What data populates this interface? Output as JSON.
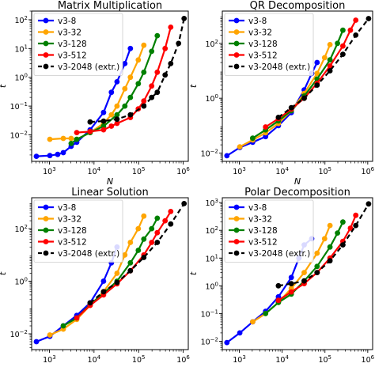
{
  "colors": {
    "v3-8": "#0000ff",
    "v3-32": "#ffa500",
    "v3-128": "#008000",
    "v3-512": "#ff0000",
    "v3-2048 (extr.)": "#000000"
  },
  "chart_data": [
    {
      "type": "line",
      "title": "Matrix Multiplication",
      "xlabel": "N",
      "ylabel": "t",
      "xscale": "log",
      "yscale": "log",
      "xlim": [
        400,
        1300000
      ],
      "ylim": [
        0.0012,
        200
      ],
      "xticks": [
        "10^3",
        "10^4",
        "10^5",
        "10^6"
      ],
      "yticks": [
        "10^-2",
        "10^-1",
        "10^0",
        "10^1",
        "10^2"
      ],
      "legend": "upper left",
      "series": [
        {
          "name": "v3-8",
          "x": [
            512,
            1024,
            1536,
            2048,
            3072,
            4096,
            8192,
            16384,
            24576,
            32768,
            49152,
            65536
          ],
          "y": [
            0.0018,
            0.0019,
            0.0021,
            0.0024,
            0.004,
            0.0055,
            0.015,
            0.06,
            0.3,
            0.7,
            3.0,
            10.0
          ]
        },
        {
          "name": "v3-32",
          "x": [
            1024,
            2048,
            3072,
            4096,
            8192,
            16384,
            24576,
            32768,
            49152,
            65536,
            98304,
            131072
          ],
          "y": [
            0.007,
            0.0075,
            0.0075,
            0.007,
            0.012,
            0.025,
            0.05,
            0.1,
            0.4,
            1.0,
            4.0,
            13.0
          ]
        },
        {
          "name": "v3-128",
          "x": [
            3072,
            4096,
            8192,
            16384,
            32768,
            49152,
            65536,
            98304,
            131072,
            196608,
            262144
          ],
          "y": [
            0.005,
            0.007,
            0.012,
            0.02,
            0.05,
            0.1,
            0.2,
            0.6,
            1.5,
            8.0,
            28.0
          ]
        },
        {
          "name": "v3-512",
          "x": [
            4096,
            8192,
            16384,
            24576,
            32768,
            65536,
            98304,
            131072,
            196608,
            262144,
            393216,
            524288
          ],
          "y": [
            0.012,
            0.013,
            0.015,
            0.02,
            0.025,
            0.04,
            0.08,
            0.15,
            0.5,
            1.5,
            10.0,
            55.0
          ]
        },
        {
          "name": "v3-2048 (extr.)",
          "x": [
            8192,
            16384,
            32768,
            65536,
            131072,
            196608,
            262144,
            393216,
            524288,
            786432,
            1048576
          ],
          "y": [
            0.028,
            0.03,
            0.035,
            0.05,
            0.1,
            0.2,
            0.3,
            1.2,
            3.0,
            15.0,
            110.0
          ]
        }
      ]
    },
    {
      "type": "line",
      "title": "QR Decomposition",
      "xlabel": "N",
      "ylabel": "t",
      "xscale": "log",
      "yscale": "log",
      "xlim": [
        400,
        1300000
      ],
      "ylim": [
        0.005,
        1500
      ],
      "xticks": [
        "10^3",
        "10^4",
        "10^5",
        "10^6"
      ],
      "yticks": [
        "10^-2",
        "10^0",
        "10^2"
      ],
      "legend": "upper left",
      "series": [
        {
          "name": "v3-8",
          "x": [
            512,
            1024,
            2048,
            4096,
            8192,
            16384,
            32768,
            49152,
            65536
          ],
          "y": [
            0.008,
            0.016,
            0.025,
            0.04,
            0.1,
            0.3,
            2.0,
            8.0,
            20.0
          ]
        },
        {
          "name": "v3-32",
          "x": [
            1024,
            2048,
            4096,
            8192,
            16384,
            32768,
            65536,
            98304,
            131072
          ],
          "y": [
            0.017,
            0.03,
            0.055,
            0.12,
            0.35,
            1.5,
            8.0,
            30.0,
            90.0
          ]
        },
        {
          "name": "v3-128",
          "x": [
            2048,
            4096,
            8192,
            16384,
            32768,
            65536,
            131072,
            196608,
            262144
          ],
          "y": [
            0.035,
            0.07,
            0.15,
            0.35,
            1.2,
            5.0,
            25.0,
            100.0,
            300.0
          ]
        },
        {
          "name": "v3-512",
          "x": [
            4096,
            8192,
            16384,
            32768,
            65536,
            131072,
            262144,
            393216,
            524288
          ],
          "y": [
            0.09,
            0.18,
            0.4,
            1.0,
            3.5,
            15.0,
            80.0,
            300.0,
            700.0
          ]
        },
        {
          "name": "v3-2048 (extr.)",
          "x": [
            8192,
            16384,
            32768,
            65536,
            131072,
            262144,
            524288,
            1048576
          ],
          "y": [
            0.2,
            0.45,
            1.0,
            3.0,
            10.0,
            40.0,
            200.0,
            800.0
          ]
        }
      ]
    },
    {
      "type": "line",
      "title": "Linear Solution",
      "xlabel": "N",
      "ylabel": "t",
      "xscale": "log",
      "yscale": "log",
      "xlim": [
        400,
        1300000
      ],
      "ylim": [
        0.0025,
        1500
      ],
      "xticks": [
        "10^3",
        "10^4",
        "10^5",
        "10^6"
      ],
      "yticks": [
        "10^-2",
        "10^0",
        "10^2"
      ],
      "legend": "upper left",
      "series": [
        {
          "name": "v3-8",
          "x": [
            512,
            1024,
            2048,
            4096,
            8192,
            16384,
            24576,
            32768
          ],
          "y": [
            0.005,
            0.008,
            0.02,
            0.05,
            0.15,
            1.0,
            5.0,
            20.0
          ]
        },
        {
          "name": "v3-32",
          "x": [
            1024,
            2048,
            4096,
            8192,
            16384,
            32768,
            49152,
            65536,
            98304,
            131072
          ],
          "y": [
            0.009,
            0.015,
            0.035,
            0.12,
            0.4,
            2.0,
            10.0,
            30.0,
            100.0,
            300.0
          ]
        },
        {
          "name": "v3-128",
          "x": [
            2048,
            4096,
            8192,
            16384,
            32768,
            65536,
            98304,
            131072,
            196608,
            262144
          ],
          "y": [
            0.02,
            0.04,
            0.13,
            0.35,
            1.0,
            5.0,
            15.0,
            40.0,
            100.0,
            250.0
          ]
        },
        {
          "name": "v3-512",
          "x": [
            4096,
            8192,
            16384,
            32768,
            65536,
            131072,
            196608,
            262144,
            393216,
            524288
          ],
          "y": [
            0.04,
            0.12,
            0.3,
            0.8,
            2.5,
            10.0,
            30.0,
            70.0,
            200.0,
            450.0
          ]
        },
        {
          "name": "v3-2048 (extr.)",
          "x": [
            8192,
            16384,
            32768,
            65536,
            131072,
            262144,
            524288,
            1048576
          ],
          "y": [
            0.15,
            0.4,
            0.9,
            2.5,
            8.0,
            30.0,
            150.0,
            900.0
          ]
        }
      ]
    },
    {
      "type": "line",
      "title": "Polar Decomposition",
      "xlabel": "N",
      "ylabel": "t",
      "xscale": "log",
      "yscale": "log",
      "xlim": [
        400,
        1300000
      ],
      "ylim": [
        0.005,
        1500
      ],
      "xticks": [
        "10^3",
        "10^4",
        "10^5",
        "10^6"
      ],
      "yticks": [
        "10^-2",
        "10^-1",
        "10^0",
        "10^1",
        "10^2",
        "10^3"
      ],
      "legend": "upper left",
      "series": [
        {
          "name": "v3-8",
          "x": [
            512,
            1024,
            2048,
            4096,
            8192,
            16384,
            24576,
            32768,
            49152
          ],
          "y": [
            0.009,
            0.02,
            0.05,
            0.12,
            0.4,
            2.0,
            10.0,
            30.0,
            50.0
          ]
        },
        {
          "name": "v3-32",
          "x": [
            2048,
            4096,
            8192,
            16384,
            32768,
            65536,
            98304,
            131072
          ],
          "y": [
            0.05,
            0.1,
            0.25,
            0.8,
            3.0,
            15.0,
            50.0,
            150.0
          ]
        },
        {
          "name": "v3-128",
          "x": [
            4096,
            8192,
            16384,
            32768,
            65536,
            131072,
            196608,
            262144
          ],
          "y": [
            0.1,
            0.25,
            0.5,
            1.5,
            5.0,
            25.0,
            80.0,
            200.0
          ]
        },
        {
          "name": "v3-512",
          "x": [
            8192,
            16384,
            32768,
            65536,
            131072,
            262144,
            393216,
            524288
          ],
          "y": [
            0.3,
            0.6,
            1.2,
            3.0,
            10.0,
            40.0,
            120.0,
            350.0
          ]
        },
        {
          "name": "v3-2048 (extr.)",
          "x": [
            8192,
            16384,
            32768,
            65536,
            131072,
            262144,
            524288,
            1048576
          ],
          "y": [
            1.0,
            1.2,
            1.5,
            3.0,
            8.0,
            30.0,
            150.0,
            900.0
          ]
        }
      ]
    }
  ]
}
